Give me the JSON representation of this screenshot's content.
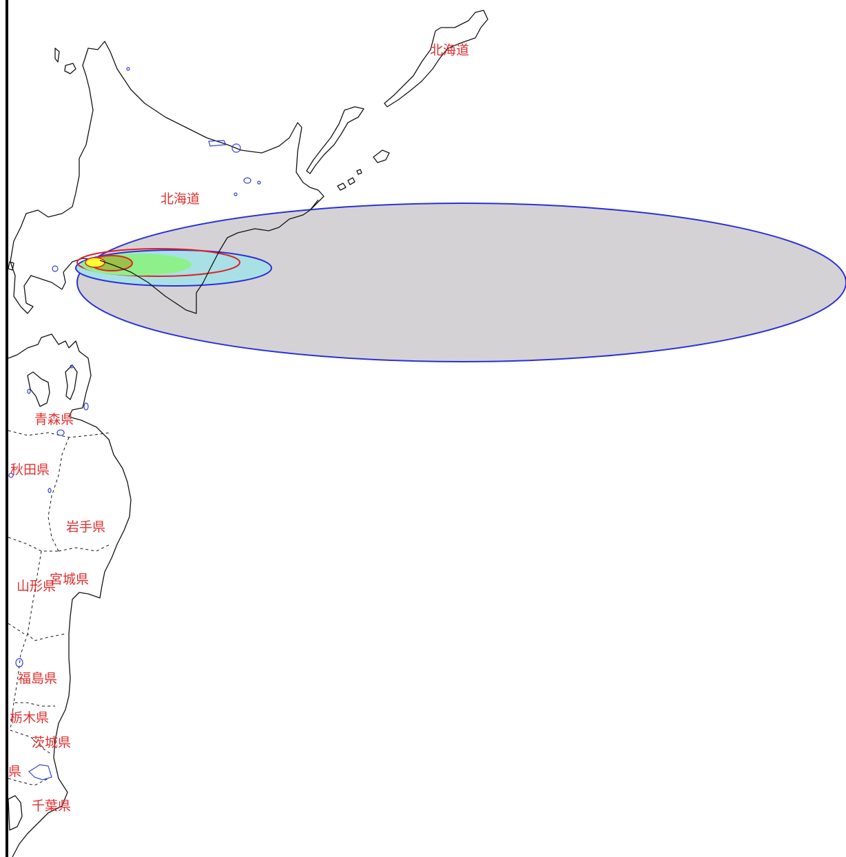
{
  "map": {
    "labels": [
      {
        "id": "hokkaido-north",
        "text": "北海道"
      },
      {
        "id": "hokkaido",
        "text": "北海道"
      },
      {
        "id": "aomori",
        "text": "青森県"
      },
      {
        "id": "akita",
        "text": "秋田県"
      },
      {
        "id": "iwate",
        "text": "岩手県"
      },
      {
        "id": "miyagi",
        "text": "宮城県"
      },
      {
        "id": "yamagata",
        "text": "山形県"
      },
      {
        "id": "fukushima",
        "text": "福島県"
      },
      {
        "id": "tochigi",
        "text": "栃木県"
      },
      {
        "id": "ibaraki",
        "text": "茨城県"
      },
      {
        "id": "partial",
        "text": "県"
      },
      {
        "id": "chiba",
        "text": "千葉県"
      }
    ],
    "colors": {
      "label": "#e03030",
      "coast": "#111111",
      "lake": "#3340d8",
      "outer_ellipse_fill": "#d5d2d6",
      "outer_ellipse_stroke": "#2b2fd6",
      "mid_ellipse_fill": "#a8e0e6",
      "mid_ellipse_stroke": "#2b2fd6",
      "red_ellipse_stroke": "#e02020",
      "green_ellipse_fill": "#8ef08a",
      "olive_ellipse_fill": "#9ac24a",
      "yellow_ellipse_fill": "#ffff33"
    }
  }
}
